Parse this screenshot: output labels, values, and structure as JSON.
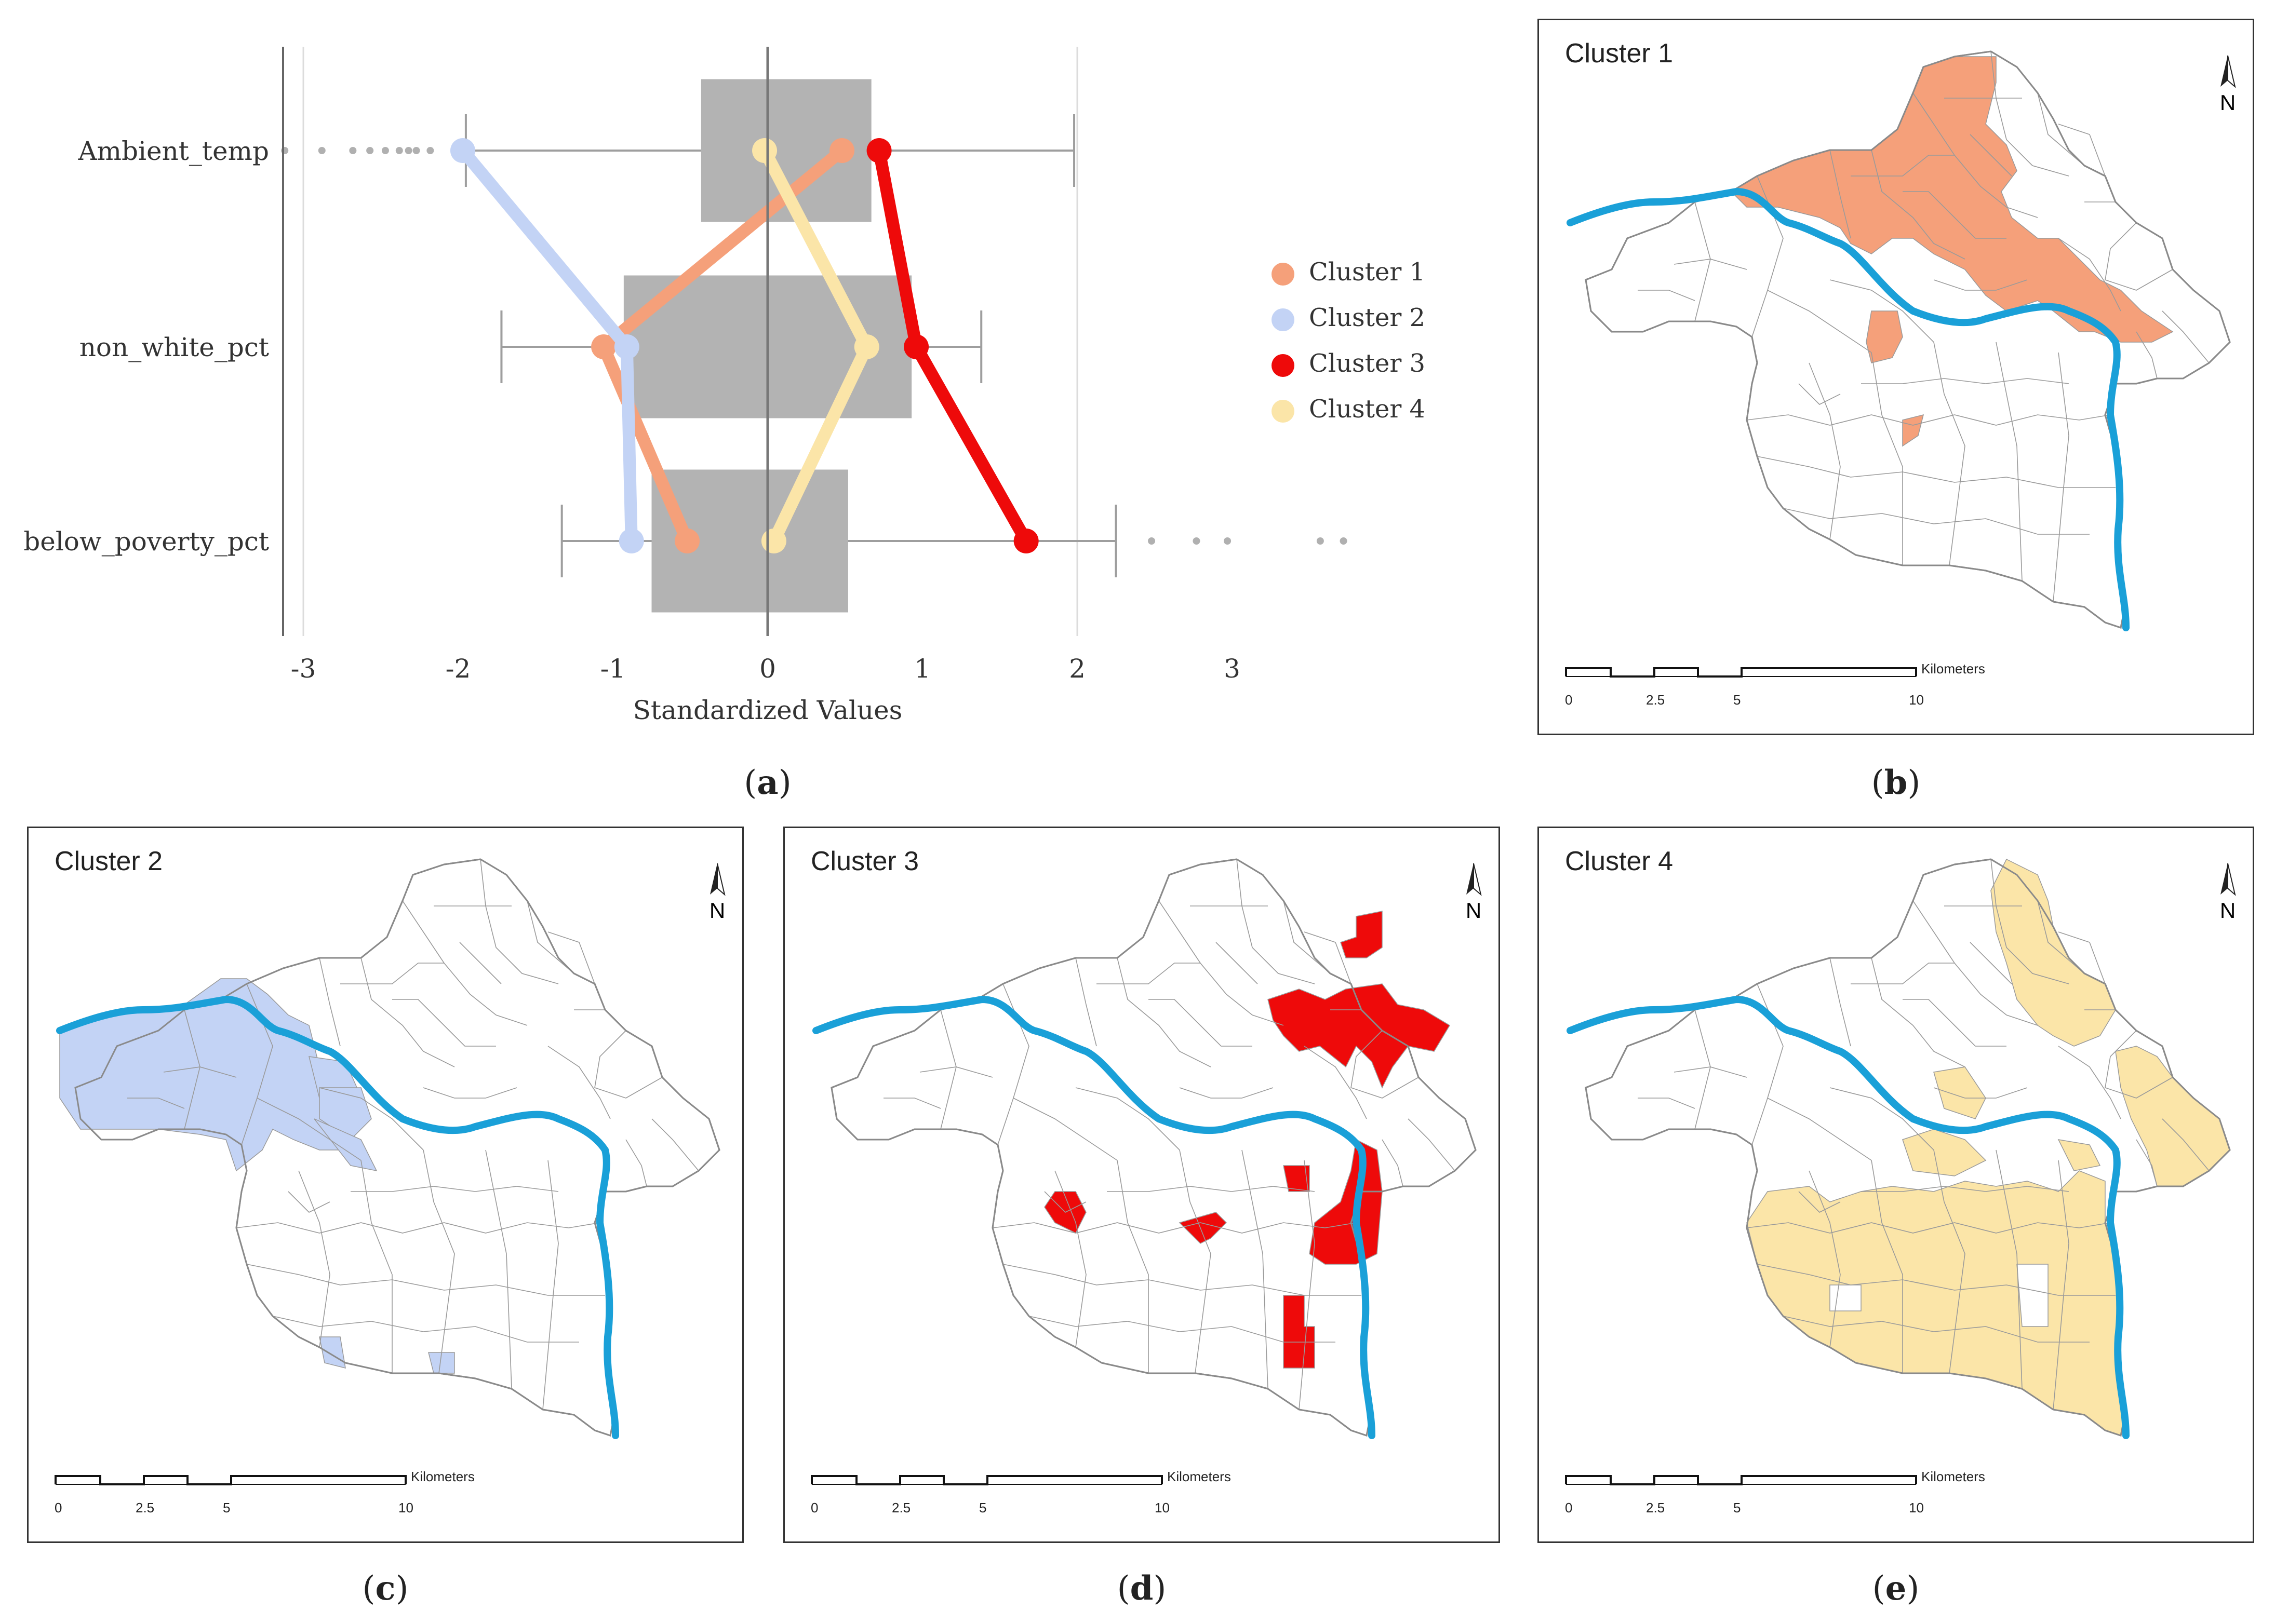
{
  "colors": {
    "cluster1": "#f5a07a",
    "cluster2": "#c3d3f5",
    "cluster3": "#ee0a0a",
    "cluster4": "#fbe5a8",
    "river": "#1aa0d8",
    "box": "#b3b3b3",
    "whisker": "#9e9e9e"
  },
  "chart_data": {
    "type": "box",
    "xlabel": "Standardized Values",
    "xlim": [
      -3.15,
      3.3
    ],
    "xticks": [
      "-3",
      "-2",
      "-1",
      "0",
      "1",
      "2",
      "3"
    ],
    "xtick_values": [
      -3,
      -2,
      -1,
      0,
      1,
      2,
      3
    ],
    "grid": "vertical at -3, 2",
    "categories": [
      "Ambient_temp",
      "non_white_pct",
      "below_poverty_pct"
    ],
    "boxes": [
      {
        "category": "Ambient_temp",
        "whisker_low": -1.95,
        "q1": -0.43,
        "q3": 0.67,
        "whisker_high": 1.98,
        "outliers": [
          -3.12,
          -2.88,
          -2.68,
          -2.57,
          -2.47,
          -2.38,
          -2.32,
          -2.27,
          -2.18
        ]
      },
      {
        "category": "non_white_pct",
        "whisker_low": -1.72,
        "q1": -0.93,
        "q3": 0.93,
        "whisker_high": 1.38,
        "outliers": []
      },
      {
        "category": "below_poverty_pct",
        "whisker_low": -1.33,
        "q1": -0.75,
        "q3": 0.52,
        "whisker_high": 2.25,
        "outliers": [
          2.48,
          2.77,
          2.97,
          3.57,
          3.72
        ]
      }
    ],
    "series": [
      {
        "name": "Cluster 1",
        "values": [
          0.48,
          -1.06,
          -0.52
        ]
      },
      {
        "name": "Cluster 2",
        "values": [
          -1.97,
          -0.91,
          -0.88
        ]
      },
      {
        "name": "Cluster 3",
        "values": [
          0.72,
          0.96,
          1.67
        ]
      },
      {
        "name": "Cluster 4",
        "values": [
          -0.02,
          0.64,
          0.04
        ]
      }
    ],
    "legend": "right"
  },
  "legend": [
    {
      "label": "Cluster 1",
      "color": "#f5a07a"
    },
    {
      "label": "Cluster 2",
      "color": "#c3d3f5"
    },
    {
      "label": "Cluster 3",
      "color": "#ee0a0a"
    },
    {
      "label": "Cluster 4",
      "color": "#fbe5a8"
    }
  ],
  "maps": {
    "b": {
      "title": "Cluster 1"
    },
    "c": {
      "title": "Cluster 2"
    },
    "d": {
      "title": "Cluster 3"
    },
    "e": {
      "title": "Cluster 4"
    }
  },
  "scalebar": {
    "ticks": [
      "0",
      "2.5",
      "5",
      "10"
    ],
    "unit": "Kilometers"
  },
  "north_label": "N",
  "captions": {
    "a": "a",
    "b": "b",
    "c": "c",
    "d": "d",
    "e": "e"
  }
}
